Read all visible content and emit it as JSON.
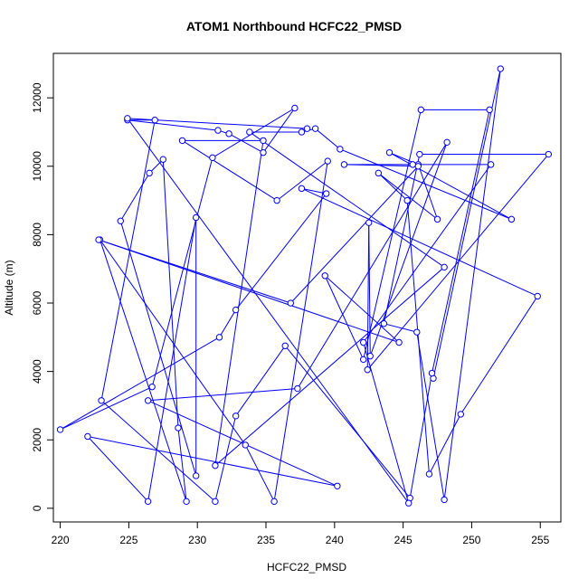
{
  "chart_data": {
    "type": "line",
    "title": "ATOM1 Northbound HCFC22_PMSD",
    "xlabel": "HCFC22_PMSD",
    "ylabel": "Altitude (m)",
    "xlim": [
      219.5,
      256.5
    ],
    "ylim": [
      -400,
      13300
    ],
    "x_ticks": [
      220,
      225,
      230,
      235,
      240,
      245,
      250,
      255
    ],
    "x_tick_labels": [
      "220",
      "225",
      "230",
      "235",
      "240",
      "245",
      "250",
      "255"
    ],
    "y_ticks": [
      0,
      2000,
      4000,
      6000,
      8000,
      10000,
      12000
    ],
    "y_tick_labels": [
      "0",
      "2000",
      "4000",
      "6000",
      "8000",
      "10000",
      "12000"
    ],
    "grid": false,
    "legend": "none",
    "colors": {
      "series": "#0000ff",
      "axis": "#000000",
      "background": "#ffffff"
    },
    "marker": "open-circle",
    "series": [
      {
        "points": [
          [
            247.2,
            3800
          ],
          [
            252.1,
            12850
          ],
          [
            248.0,
            250
          ],
          [
            246.0,
            5150
          ],
          [
            243.6,
            5400
          ],
          [
            246.2,
            10350
          ],
          [
            255.6,
            10350
          ],
          [
            242.4,
            4050
          ],
          [
            242.5,
            8350
          ],
          [
            242.6,
            4450
          ],
          [
            248.2,
            10700
          ],
          [
            237.3,
            3500
          ],
          [
            226.4,
            3150
          ],
          [
            240.2,
            650
          ],
          [
            222.0,
            2100
          ],
          [
            226.4,
            200
          ],
          [
            229.9,
            8500
          ],
          [
            229.9,
            950
          ],
          [
            224.4,
            8400
          ],
          [
            226.5,
            9800
          ],
          [
            227.5,
            10200
          ],
          [
            228.6,
            2350
          ],
          [
            229.2,
            200
          ],
          [
            222.9,
            7850
          ],
          [
            233.5,
            1850
          ],
          [
            235.6,
            200
          ],
          [
            239.5,
            10150
          ],
          [
            235.8,
            9000
          ],
          [
            228.9,
            10750
          ],
          [
            234.8,
            10750
          ],
          [
            231.3,
            1250
          ],
          [
            248.0,
            7050
          ],
          [
            233.8,
            11000
          ],
          [
            237.6,
            11000
          ],
          [
            238.6,
            11100
          ],
          [
            240.4,
            10500
          ],
          [
            252.9,
            8450
          ],
          [
            244.0,
            10400
          ],
          [
            246.1,
            10050
          ],
          [
            247.5,
            8450
          ],
          [
            243.2,
            9800
          ],
          [
            245.3,
            9000
          ],
          [
            246.9,
            1000
          ],
          [
            249.2,
            2750
          ],
          [
            254.8,
            6200
          ],
          [
            237.6,
            9350
          ],
          [
            239.4,
            9200
          ],
          [
            232.8,
            5800
          ],
          [
            231.6,
            5000
          ],
          [
            220.0,
            2300
          ],
          [
            226.7,
            3550
          ],
          [
            231.1,
            10250
          ],
          [
            237.1,
            11700
          ],
          [
            234.8,
            10400
          ],
          [
            232.3,
            10950
          ],
          [
            231.5,
            11050
          ],
          [
            224.9,
            11350
          ],
          [
            226.9,
            11350
          ],
          [
            223.0,
            3150
          ],
          [
            231.3,
            200
          ],
          [
            232.8,
            2700
          ],
          [
            236.4,
            4750
          ],
          [
            245.5,
            300
          ],
          [
            247.1,
            3950
          ],
          [
            251.3,
            11650
          ],
          [
            246.3,
            11650
          ],
          [
            242.1,
            4350
          ],
          [
            239.3,
            6800
          ],
          [
            244.7,
            4850
          ],
          [
            222.8,
            7850
          ],
          [
            236.8,
            6000
          ],
          [
            246.1,
            10000
          ],
          [
            240.7,
            10050
          ],
          [
            245.7,
            10050
          ],
          [
            251.4,
            10050
          ],
          [
            242.1,
            4850
          ],
          [
            245.4,
            150
          ],
          [
            224.9,
            11400
          ],
          [
            238.0,
            11100
          ]
        ]
      }
    ]
  }
}
